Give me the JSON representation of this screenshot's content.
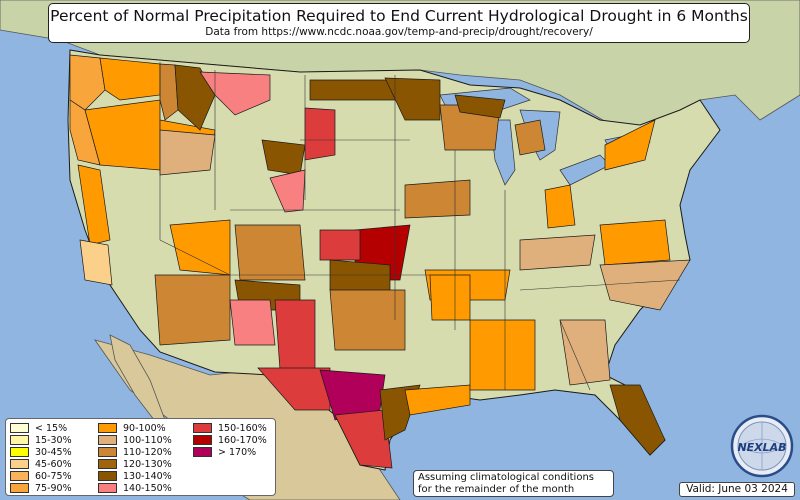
{
  "title": "Percent of Normal Precipitation Required to End Current Hydrological Drought in 6 Months",
  "subtitle": "Data from https://www.ncdc.noaa.gov/temp-and-precip/drought/recovery/",
  "note": {
    "line1": "Assuming climatological conditions",
    "line2": "for the remainder of the month"
  },
  "valid": "Valid: June 03 2024",
  "logo_text": "NEXLAB",
  "colors": {
    "ocean": "#8fb5e0",
    "land": "#dcd6b4",
    "land_us": "#d6dcae",
    "border": "#1a1a1a"
  },
  "legend": [
    {
      "label": "< 15%",
      "color": "#ffffd4"
    },
    {
      "label": "15-30%",
      "color": "#fff7a6"
    },
    {
      "label": "30-45%",
      "color": "#ffff00"
    },
    {
      "label": "45-60%",
      "color": "#fad08a"
    },
    {
      "label": "60-75%",
      "color": "#fbb35b"
    },
    {
      "label": "75-90%",
      "color": "#f8a63c"
    },
    {
      "label": "90-100%",
      "color": "#ff9a00"
    },
    {
      "label": "100-110%",
      "color": "#e0b07c"
    },
    {
      "label": "110-120%",
      "color": "#cd8633"
    },
    {
      "label": "120-130%",
      "color": "#a0640c"
    },
    {
      "label": "130-140%",
      "color": "#8a5500"
    },
    {
      "label": "140-150%",
      "color": "#f88080"
    },
    {
      "label": "150-160%",
      "color": "#dc3c3c"
    },
    {
      "label": "160-170%",
      "color": "#b40000"
    },
    {
      "label": "> 170%",
      "color": "#b0005a"
    }
  ],
  "regions": [
    {
      "name": "washington-west",
      "cls": 5
    },
    {
      "name": "washington-central",
      "cls": 6
    },
    {
      "name": "oregon-west",
      "cls": 5
    },
    {
      "name": "oregon-central",
      "cls": 6
    },
    {
      "name": "idaho-north",
      "cls": 8
    },
    {
      "name": "idaho-south",
      "cls": 6
    },
    {
      "name": "montana-west",
      "cls": 10
    },
    {
      "name": "montana-north",
      "cls": 11
    },
    {
      "name": "wyoming-west",
      "cls": 10
    },
    {
      "name": "wyoming-east",
      "cls": 11
    },
    {
      "name": "nebraska-panhandle",
      "cls": 12
    },
    {
      "name": "north-dakota",
      "cls": 10
    },
    {
      "name": "minnesota",
      "cls": 10
    },
    {
      "name": "wisconsin",
      "cls": 8
    },
    {
      "name": "michigan-up",
      "cls": 10
    },
    {
      "name": "michigan-lower",
      "cls": 8
    },
    {
      "name": "iowa-illinois",
      "cls": 8
    },
    {
      "name": "california-central",
      "cls": 6
    },
    {
      "name": "california-south",
      "cls": 3
    },
    {
      "name": "nevada-central",
      "cls": 7
    },
    {
      "name": "utah",
      "cls": 6
    },
    {
      "name": "colorado",
      "cls": 8
    },
    {
      "name": "kansas",
      "cls": 13
    },
    {
      "name": "kansas-west",
      "cls": 12
    },
    {
      "name": "oklahoma-north",
      "cls": 10
    },
    {
      "name": "arizona",
      "cls": 8
    },
    {
      "name": "new-mexico-west",
      "cls": 10
    },
    {
      "name": "new-mexico-east",
      "cls": 11
    },
    {
      "name": "new-mexico-south",
      "cls": 12
    },
    {
      "name": "texas-west",
      "cls": 12
    },
    {
      "name": "texas-big-bend",
      "cls": 14
    },
    {
      "name": "texas-south",
      "cls": 12
    },
    {
      "name": "texas-coast",
      "cls": 10
    },
    {
      "name": "texas-panhandle",
      "cls": 8
    },
    {
      "name": "louisiana",
      "cls": 6
    },
    {
      "name": "mississippi-alabama",
      "cls": 6
    },
    {
      "name": "tennessee",
      "cls": 6
    },
    {
      "name": "kentucky",
      "cls": 7
    },
    {
      "name": "virginia",
      "cls": 6
    },
    {
      "name": "carolinas",
      "cls": 7
    },
    {
      "name": "florida",
      "cls": 10
    },
    {
      "name": "georgia-south",
      "cls": 7
    },
    {
      "name": "pennsylvania",
      "cls": 6
    },
    {
      "name": "new-york",
      "cls": 6
    },
    {
      "name": "arkansas",
      "cls": 6
    }
  ]
}
